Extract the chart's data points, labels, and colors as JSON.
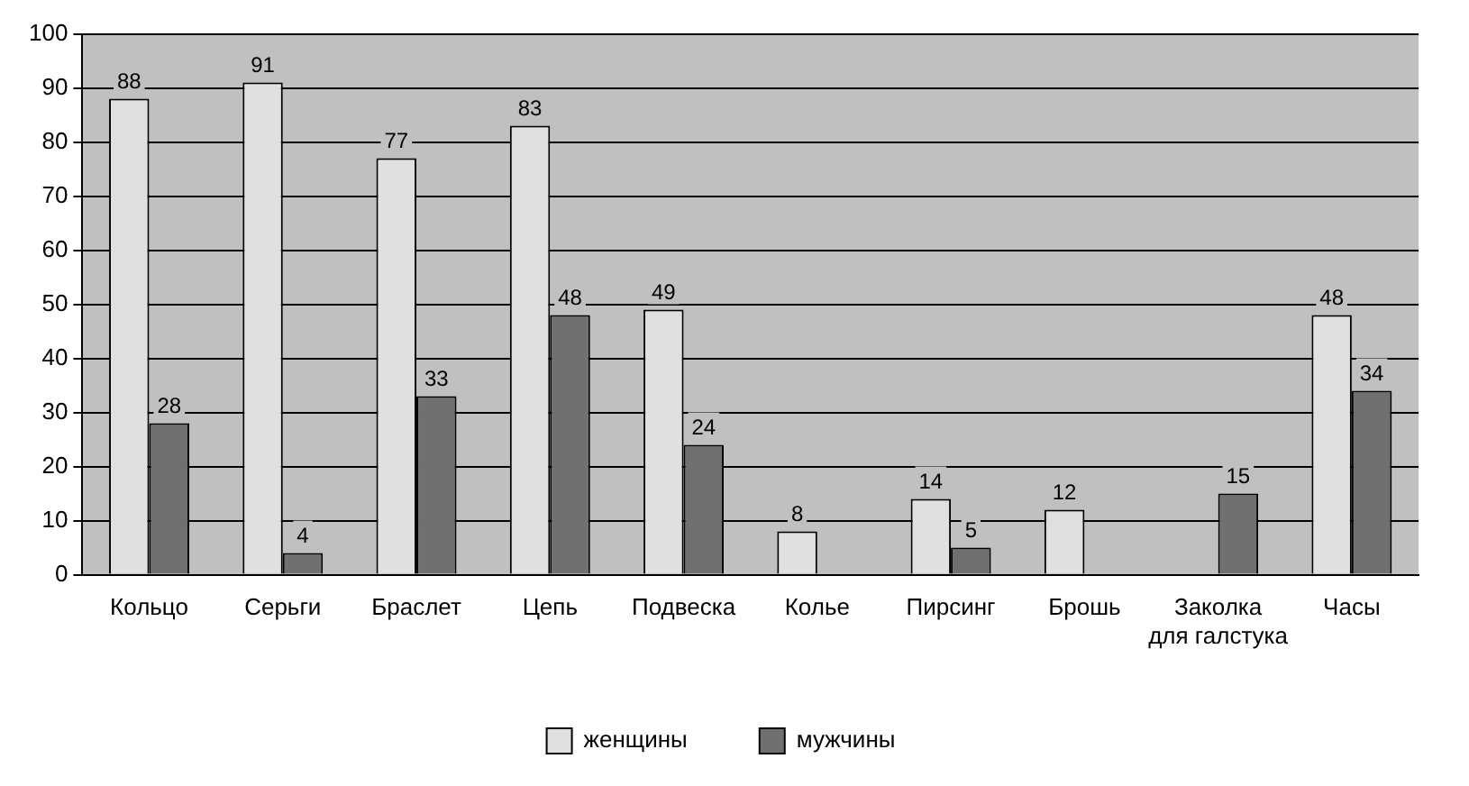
{
  "chart_data": {
    "type": "bar",
    "categories": [
      "Кольцо",
      "Серьги",
      "Браслет",
      "Цепь",
      "Подвеска",
      "Колье",
      "Пирсинг",
      "Брошь",
      "Заколка для галстука",
      "Часы"
    ],
    "series": [
      {
        "name": "женщины",
        "color": "#e0e0e0",
        "values": [
          88,
          91,
          77,
          83,
          49,
          8,
          14,
          12,
          0,
          48
        ],
        "value_labels": [
          "88",
          "91",
          "77",
          "83",
          "49",
          "8",
          "14",
          "12",
          null,
          "48"
        ]
      },
      {
        "name": "мужчины",
        "color": "#707070",
        "values": [
          28,
          4,
          33,
          48,
          24,
          0,
          5,
          0,
          15,
          34
        ],
        "value_labels": [
          "28",
          "4",
          "33",
          "48",
          "24",
          null,
          "5",
          null,
          "15",
          "34"
        ]
      }
    ],
    "ylim": [
      0,
      100
    ],
    "yticks": [
      0,
      10,
      20,
      30,
      40,
      50,
      60,
      70,
      80,
      90,
      100
    ],
    "grid": "y",
    "legend": "bottom"
  }
}
